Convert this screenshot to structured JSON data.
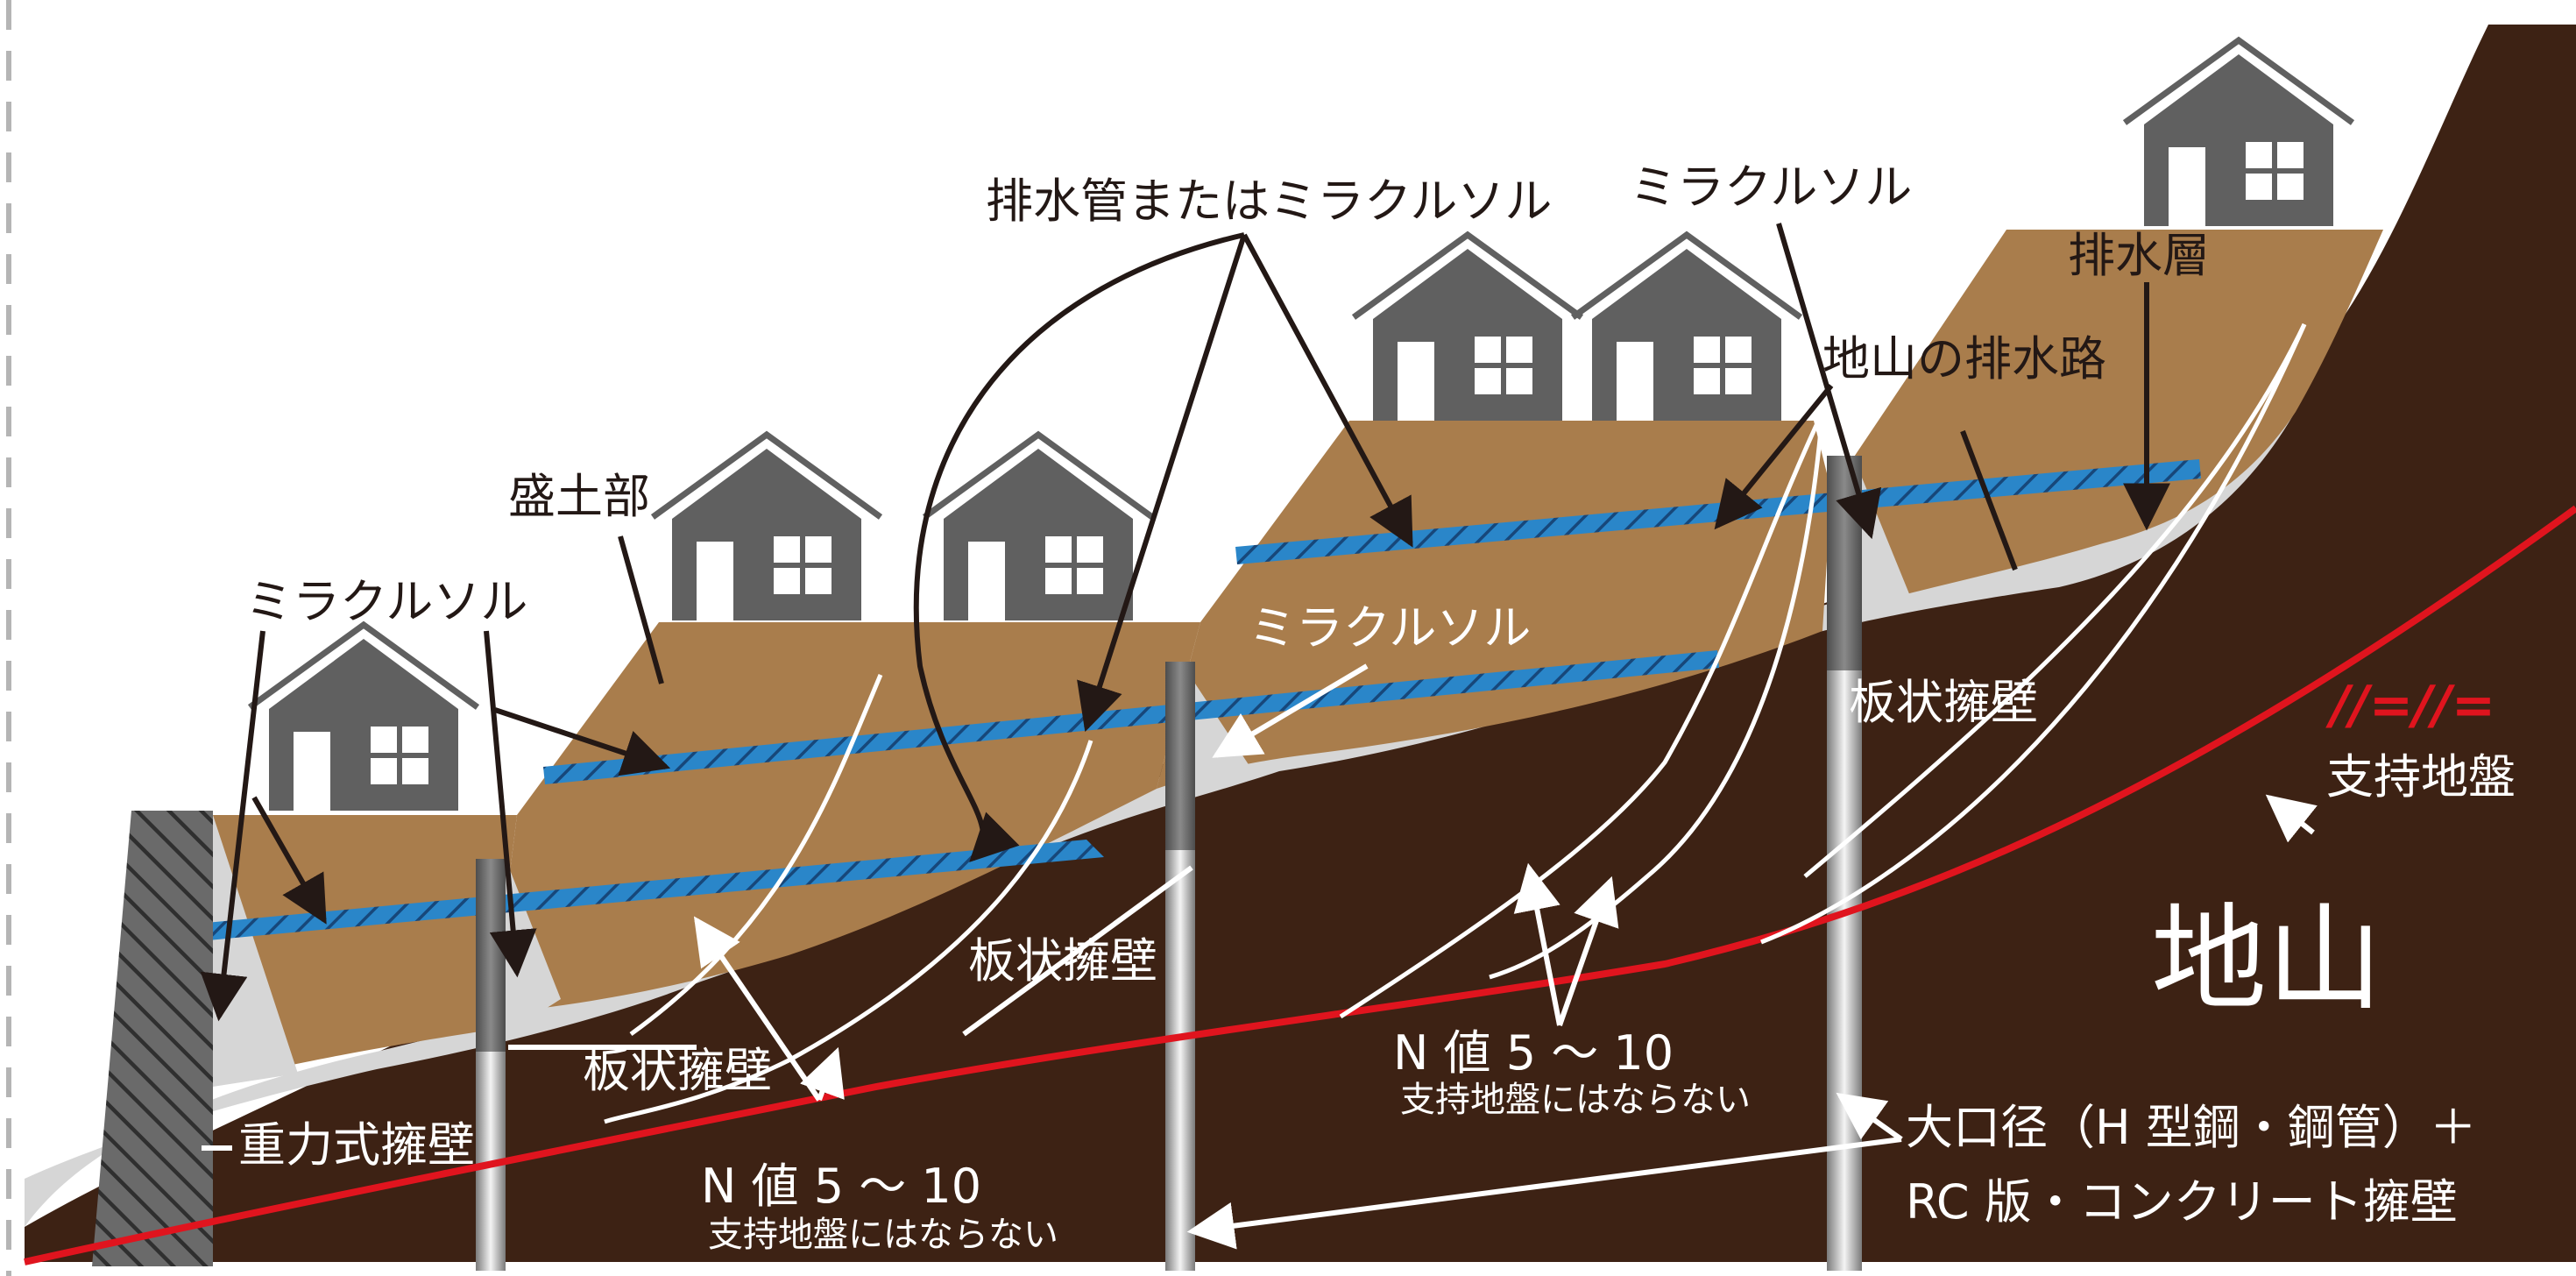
{
  "colors": {
    "bedrock": "#3d2214",
    "fill_soil": "#a97d4c",
    "gravel": "#d6d6d6",
    "drain_pipe": "#2a86c9",
    "support_line": "#e0141e",
    "house": "#606060",
    "wall": "#555555",
    "pile": "#a0a0a0"
  },
  "icons": {
    "house": "house-icon",
    "soil_symbol": "ground-symbol-icon"
  },
  "labels": {
    "drain_pipe_or_miracle": "排水管またはミラクルソル",
    "miracle_left": "ミラクルソル",
    "miracle_top": "ミラクルソル",
    "miracle_mid": "ミラクルソル",
    "fill_part": "盛土部",
    "drain_layer": "排水層",
    "natural_drain": "地山の排水路",
    "sheet_wall_1": "板状擁壁",
    "sheet_wall_2": "板状擁壁",
    "sheet_wall_3": "板状擁壁",
    "gravity_wall": "重力式擁壁",
    "n_value_1": "N 値 5 〜 10",
    "not_support_1": "支持地盤にはならない",
    "n_value_2": "N 値 5 〜 10",
    "not_support_2": "支持地盤にはならない",
    "support_ground": "支持地盤",
    "soil_symbol": "//=//=",
    "natural_ground": "地山",
    "large_pile_1": "大口径（H 型鋼・鋼管）＋",
    "large_pile_2": "RC 版・コンクリート擁壁"
  }
}
